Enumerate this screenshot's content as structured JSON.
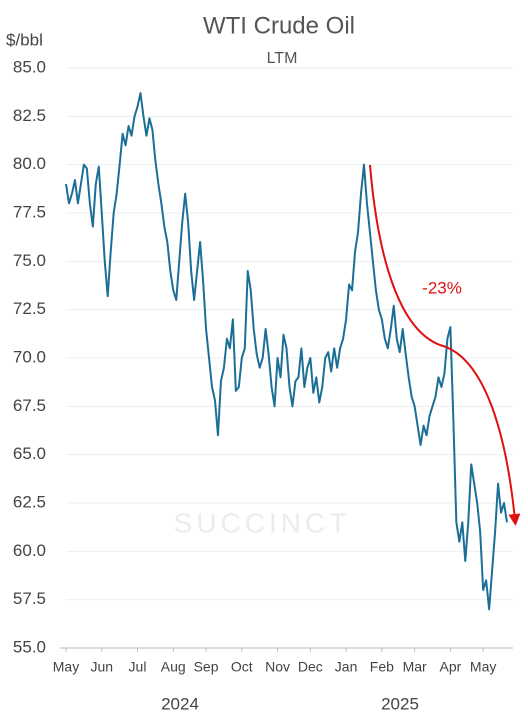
{
  "chart_data": {
    "type": "line",
    "title": "WTI Crude Oil",
    "subtitle": "LTM",
    "y_label": "$/bbl",
    "watermark": "SUCCINCT",
    "annotation": "-23%",
    "year_labels": [
      "2024",
      "2025"
    ],
    "grid": true,
    "xlim": [
      0,
      148
    ],
    "xticks": [
      {
        "value": 0,
        "label": "May"
      },
      {
        "value": 12,
        "label": "Jun"
      },
      {
        "value": 24,
        "label": "Jul"
      },
      {
        "value": 36,
        "label": "Aug"
      },
      {
        "value": 47,
        "label": "Sep"
      },
      {
        "value": 59,
        "label": "Oct"
      },
      {
        "value": 71,
        "label": "Nov"
      },
      {
        "value": 82,
        "label": "Dec"
      },
      {
        "value": 94,
        "label": "Jan"
      },
      {
        "value": 106,
        "label": "Feb"
      },
      {
        "value": 117,
        "label": "Mar"
      },
      {
        "value": 129,
        "label": "Apr"
      },
      {
        "value": 140,
        "label": "May"
      }
    ],
    "ylim": [
      55,
      85
    ],
    "yticks": [
      {
        "value": 55,
        "label": "55.0"
      },
      {
        "value": 57.5,
        "label": "57.5"
      },
      {
        "value": 60,
        "label": "60.0"
      },
      {
        "value": 62.5,
        "label": "62.5"
      },
      {
        "value": 65,
        "label": "65.0"
      },
      {
        "value": 67.5,
        "label": "67.5"
      },
      {
        "value": 70,
        "label": "70.0"
      },
      {
        "value": 72.5,
        "label": "72.5"
      },
      {
        "value": 75,
        "label": "75.0"
      },
      {
        "value": 77.5,
        "label": "77.5"
      },
      {
        "value": 80,
        "label": "80.0"
      },
      {
        "value": 82.5,
        "label": "82.5"
      },
      {
        "value": 85,
        "label": "85.0"
      }
    ],
    "color": "#1b6f97",
    "values": [
      79.0,
      78.0,
      78.5,
      79.2,
      78.0,
      79.0,
      80.0,
      79.8,
      78.0,
      76.8,
      79.0,
      79.9,
      77.5,
      75.0,
      73.2,
      75.5,
      77.5,
      78.5,
      80.0,
      81.6,
      81.0,
      82.0,
      81.5,
      82.5,
      83.0,
      83.7,
      82.5,
      81.5,
      82.4,
      81.8,
      80.2,
      79.0,
      78.0,
      76.8,
      76.0,
      74.5,
      73.5,
      73.0,
      75.0,
      77.0,
      78.5,
      77.0,
      74.5,
      73.0,
      74.5,
      76.0,
      74.0,
      71.5,
      70.0,
      68.5,
      67.8,
      66.0,
      68.8,
      69.5,
      71.0,
      70.5,
      72.0,
      68.3,
      68.5,
      70.0,
      70.5,
      74.5,
      73.5,
      71.5,
      70.2,
      69.5,
      70.0,
      71.5,
      70.2,
      68.5,
      67.5,
      70.0,
      69.0,
      71.2,
      70.5,
      68.5,
      67.5,
      68.8,
      69.0,
      70.5,
      68.5,
      69.5,
      70.0,
      68.2,
      69.0,
      67.7,
      68.5,
      70.0,
      70.3,
      69.3,
      70.5,
      69.5,
      70.5,
      71.0,
      72.0,
      73.8,
      73.5,
      75.5,
      76.5,
      78.5,
      80.0,
      78.0,
      76.5,
      75.0,
      73.5,
      72.5,
      72.0,
      71.0,
      70.5,
      71.5,
      72.7,
      71.0,
      70.3,
      71.5,
      70.2,
      69.0,
      68.0,
      67.5,
      66.5,
      65.5,
      66.5,
      66.0,
      67.0,
      67.5,
      68.0,
      69.0,
      68.5,
      69.2,
      71.0,
      71.6,
      66.8,
      61.5,
      60.5,
      61.5,
      59.5,
      61.5,
      64.5,
      63.5,
      62.5,
      61.0,
      58.0,
      58.5,
      57.0,
      59.0,
      61.0,
      63.5,
      62.0,
      62.5,
      61.5
    ]
  }
}
